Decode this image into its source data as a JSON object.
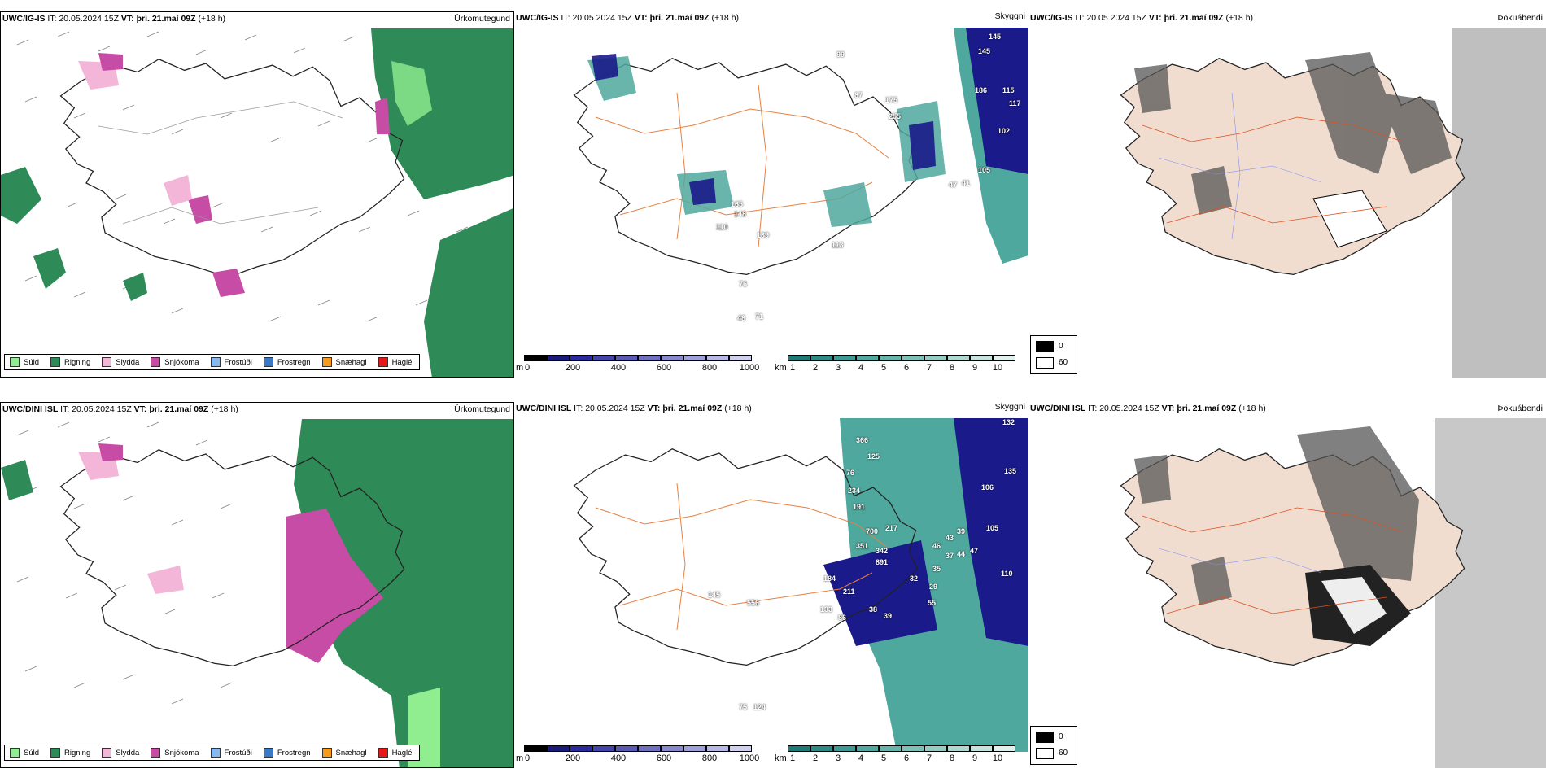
{
  "rows": [
    {
      "model": "UWC/IG-IS",
      "it_label": "IT:",
      "it_value": "20.05.2024 15Z",
      "vt_label": "VT:",
      "vt_value": "þri. 21.maí 09Z",
      "lead": "(+18 h)"
    },
    {
      "model": "UWC/DINI ISL",
      "it_label": "IT:",
      "it_value": "20.05.2024 15Z",
      "vt_label": "VT:",
      "vt_value": "þri. 21.maí 09Z",
      "lead": "(+18 h)"
    }
  ],
  "panel_titles": {
    "precip": "Úrkomutegund",
    "clouds": "Skyggni",
    "fog": "Þokuábendi"
  },
  "precip_legend": [
    {
      "label": "Súld",
      "color": "#90ee90"
    },
    {
      "label": "Rigning",
      "color": "#2e8b57"
    },
    {
      "label": "Slydda",
      "color": "#f4b6d8"
    },
    {
      "label": "Snjókoma",
      "color": "#c74ca6"
    },
    {
      "label": "Frostúði",
      "color": "#87b8ee"
    },
    {
      "label": "Frostregn",
      "color": "#3a78c8"
    },
    {
      "label": "Snæhagl",
      "color": "#f59a1a"
    },
    {
      "label": "Haglél",
      "color": "#e41a1a"
    }
  ],
  "cloudbase_bar": {
    "unit": "m",
    "ticks": [
      "0",
      "200",
      "400",
      "600",
      "800",
      "1000"
    ],
    "colors": [
      "#000000",
      "#1a1a7a",
      "#2b2b9c",
      "#4444aa",
      "#5a5ab4",
      "#7070c0",
      "#8888cc",
      "#a0a0d8",
      "#b8b8e4",
      "#d0d0ee"
    ]
  },
  "visibility_bar": {
    "unit": "km",
    "ticks": [
      "1",
      "2",
      "3",
      "4",
      "5",
      "6",
      "7",
      "8",
      "9",
      "10"
    ],
    "colors": [
      "#1e7a78",
      "#2e8a86",
      "#3e9a94",
      "#52a8a0",
      "#66b4ac",
      "#7ec0b8",
      "#96ccc4",
      "#aed8d0",
      "#c6e4de",
      "#e0f0ec"
    ]
  },
  "fog_legend": [
    {
      "label": "0",
      "color": "#000000"
    },
    {
      "label": "60",
      "color": "#ffffff"
    }
  ],
  "cloud_labels_top": [
    "145",
    "145",
    "115",
    "117",
    "102",
    "99",
    "87",
    "175",
    "255",
    "186",
    "110",
    "165",
    "148",
    "113",
    "139",
    "41",
    "105",
    "47",
    "76",
    "48",
    "71"
  ],
  "cloud_labels_bottom": [
    "132",
    "366",
    "125",
    "135",
    "106",
    "105",
    "110",
    "76",
    "234",
    "191",
    "700",
    "217",
    "351",
    "342",
    "891",
    "39",
    "43",
    "46",
    "37",
    "44",
    "47",
    "35",
    "32",
    "29",
    "55",
    "184",
    "211",
    "133",
    "86",
    "38",
    "39",
    "556",
    "145",
    "75",
    "124"
  ],
  "colors": {
    "land_fog": "#f1ddd0",
    "roads": "#e88040",
    "rain": "#2e8b57",
    "drizzle": "#90ee90",
    "snow": "#c74ca6",
    "sleet": "#f4b6d8",
    "sea_cloud": "#4fa89e",
    "cloud_low": "#1a1a8a"
  }
}
